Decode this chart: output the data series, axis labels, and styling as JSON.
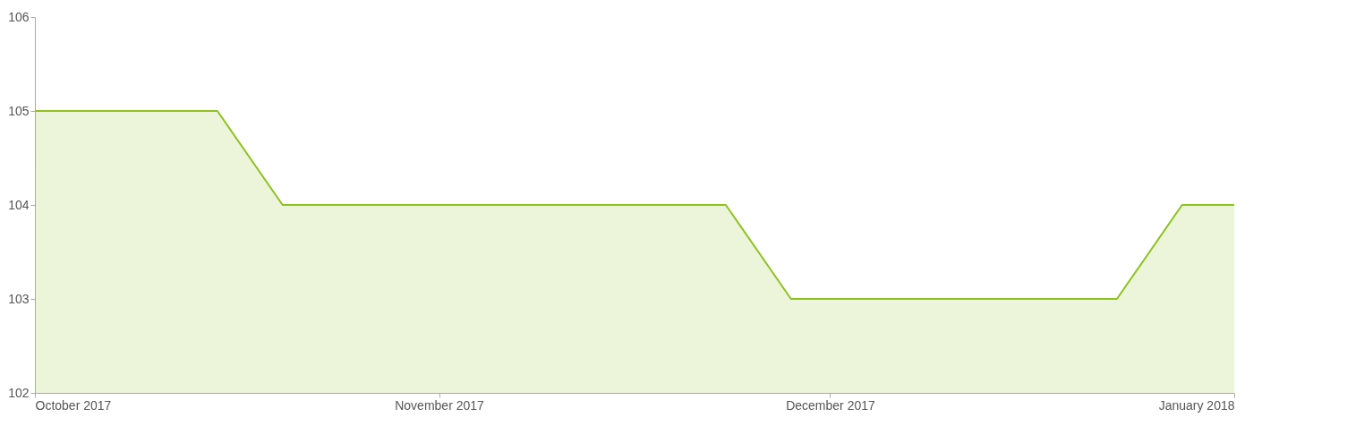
{
  "chart_data": {
    "type": "area",
    "x": [
      "2017-10-01",
      "2017-10-15",
      "2017-10-20",
      "2017-11-23",
      "2017-11-28",
      "2017-12-23",
      "2017-12-28",
      "2018-01-01"
    ],
    "series": [
      {
        "color": "#8cc21f",
        "values": [
          105,
          105,
          104,
          104,
          103,
          103,
          104,
          104
        ]
      }
    ],
    "xlim": [
      "2017-10-01",
      "2018-01-01"
    ],
    "xticks": [
      {
        "value": "2017-10-01",
        "label": "October 2017"
      },
      {
        "value": "2017-11-01",
        "label": "November 2017"
      },
      {
        "value": "2017-12-01",
        "label": "December 2017"
      },
      {
        "value": "2018-01-01",
        "label": "January 2018"
      }
    ],
    "ylim": [
      102,
      106
    ],
    "yticks": [
      102,
      103,
      104,
      105,
      106
    ],
    "grid": false
  }
}
